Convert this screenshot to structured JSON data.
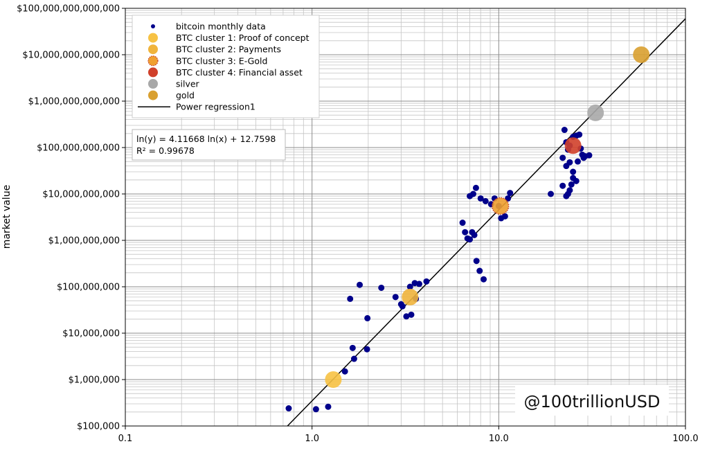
{
  "chart_data": {
    "type": "scatter",
    "x_scale": "log",
    "y_scale": "log",
    "xlim": [
      0.1,
      100
    ],
    "ylim": [
      100000,
      100000000000000
    ],
    "ylabel": "market value",
    "xlabel": "",
    "x_tick_labels": [
      "0.1",
      "1.0",
      "10.0",
      "100.0"
    ],
    "x_tick_values": [
      0.1,
      1,
      10,
      100
    ],
    "y_tick_labels": [
      "$100,000",
      "$1,000,000",
      "$10,000,000",
      "$100,000,000",
      "$1,000,000,000",
      "$10,000,000,000",
      "$100,000,000,000",
      "$1,000,000,000,000",
      "$10,000,000,000,000",
      "$100,000,000,000,000"
    ],
    "y_tick_values": [
      100000,
      1000000,
      10000000,
      100000000,
      1000000000,
      10000000000,
      100000000000,
      1000000000000,
      10000000000000,
      100000000000000
    ],
    "grid": true,
    "legend_position": "top-left",
    "legend": [
      {
        "label": "bitcoin monthly data",
        "color": "#00008b",
        "marker": "small-dot"
      },
      {
        "label": "BTC cluster 1: Proof of concept",
        "color": "#f7c244",
        "marker": "circle"
      },
      {
        "label": "BTC cluster 2: Payments",
        "color": "#f0b43c",
        "marker": "circle"
      },
      {
        "label": "BTC cluster 3: E-Gold",
        "color": "#f0a030",
        "marker": "circle-dotted"
      },
      {
        "label": "BTC cluster 4: Financial asset",
        "color": "#d0402a",
        "marker": "circle"
      },
      {
        "label": "silver",
        "color": "#a8a8a8",
        "marker": "circle"
      },
      {
        "label": "gold",
        "color": "#d9a030",
        "marker": "circle"
      },
      {
        "label": "Power regression1",
        "color": "#000000",
        "marker": "line"
      }
    ],
    "regression": {
      "equation": "ln(y) = 4.11668 ln(x) + 12.7598",
      "r2": "R² = 0.99678",
      "slope": 4.11668,
      "intercept": 12.7598
    },
    "series": [
      {
        "name": "bitcoin monthly data",
        "color": "#00008b",
        "points": [
          [
            0.75,
            240000
          ],
          [
            1.05,
            230000
          ],
          [
            1.22,
            260000
          ],
          [
            1.5,
            1500000
          ],
          [
            1.68,
            2800000
          ],
          [
            1.65,
            4800000
          ],
          [
            1.97,
            4500000
          ],
          [
            1.98,
            21000000
          ],
          [
            1.6,
            55000000
          ],
          [
            1.8,
            110000000
          ],
          [
            2.35,
            95000000
          ],
          [
            2.8,
            60000000
          ],
          [
            3.0,
            42000000
          ],
          [
            3.05,
            38000000
          ],
          [
            3.2,
            23000000
          ],
          [
            3.4,
            25000000
          ],
          [
            3.35,
            100000000
          ],
          [
            3.55,
            120000000
          ],
          [
            3.75,
            115000000
          ],
          [
            4.1,
            130000000
          ],
          [
            3.6,
            55000000
          ],
          [
            6.4,
            2400000000
          ],
          [
            6.6,
            1500000000
          ],
          [
            6.8,
            1100000000
          ],
          [
            7.0,
            1050000000
          ],
          [
            7.2,
            1500000000
          ],
          [
            7.4,
            1300000000
          ],
          [
            7.0,
            9000000000
          ],
          [
            7.3,
            10000000000
          ],
          [
            7.55,
            13500000000
          ],
          [
            8.0,
            8000000000
          ],
          [
            8.5,
            7000000000
          ],
          [
            9.1,
            6000000000
          ],
          [
            9.5,
            8000000000
          ],
          [
            10.0,
            5500000000
          ],
          [
            10.3,
            3000000000
          ],
          [
            10.8,
            3300000000
          ],
          [
            11.2,
            8000000000
          ],
          [
            11.5,
            10500000000
          ],
          [
            7.6,
            360000000
          ],
          [
            7.9,
            220000000
          ],
          [
            8.3,
            145000000
          ],
          [
            19.0,
            10000000000
          ],
          [
            22.0,
            15000000000
          ],
          [
            23.0,
            9000000000
          ],
          [
            23.5,
            10000000000
          ],
          [
            24.0,
            12000000000
          ],
          [
            24.5,
            16000000000
          ],
          [
            25.0,
            22000000000
          ],
          [
            26.0,
            19000000000
          ],
          [
            22.5,
            240000000000
          ],
          [
            23.0,
            130000000000
          ],
          [
            23.5,
            90000000000
          ],
          [
            24.0,
            110000000000
          ],
          [
            25.0,
            170000000000
          ],
          [
            26.0,
            180000000000
          ],
          [
            27.0,
            190000000000
          ],
          [
            27.5,
            95000000000
          ],
          [
            28.0,
            70000000000
          ],
          [
            28.5,
            60000000000
          ],
          [
            29.0,
            65000000000
          ],
          [
            30.5,
            68000000000
          ],
          [
            23.0,
            40000000000
          ],
          [
            24.0,
            48000000000
          ],
          [
            25.0,
            30000000000
          ],
          [
            26.5,
            50000000000
          ],
          [
            22.0,
            60000000000
          ]
        ]
      },
      {
        "name": "BTC cluster 1: Proof of concept",
        "color": "#f7c244",
        "points": [
          [
            1.3,
            1000000
          ]
        ]
      },
      {
        "name": "BTC cluster 2: Payments",
        "color": "#f0b43c",
        "points": [
          [
            3.35,
            60000000
          ]
        ]
      },
      {
        "name": "BTC cluster 3: E-Gold",
        "color": "#f0a030",
        "points": [
          [
            10.2,
            5500000000
          ]
        ]
      },
      {
        "name": "BTC cluster 4: Financial asset",
        "color": "#d0402a",
        "points": [
          [
            25.0,
            110000000000
          ]
        ]
      },
      {
        "name": "silver",
        "color": "#a8a8a8",
        "points": [
          [
            33.0,
            560000000000
          ]
        ]
      },
      {
        "name": "gold",
        "color": "#d9a030",
        "points": [
          [
            58.0,
            10000000000000
          ]
        ]
      }
    ],
    "watermark": "@100trillionUSD"
  }
}
